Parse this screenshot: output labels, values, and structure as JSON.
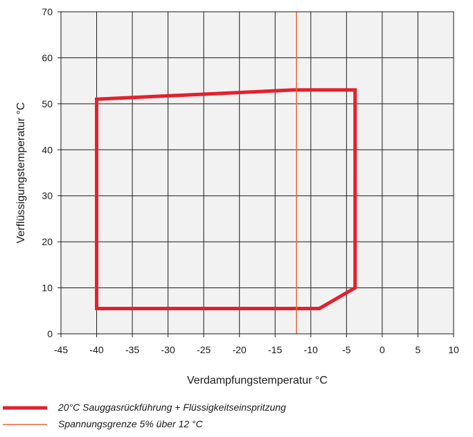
{
  "chart_data": {
    "type": "area",
    "xlabel": "Verdampfungstemperatur °C",
    "ylabel": "Verflüssigungstemperatur °C",
    "xlim": [
      -45,
      10
    ],
    "ylim": [
      0,
      70
    ],
    "x_ticks": [
      -45,
      -40,
      -35,
      -30,
      -25,
      -20,
      -15,
      -10,
      -5,
      0,
      5,
      10
    ],
    "y_ticks": [
      0,
      10,
      20,
      30,
      40,
      50,
      60,
      70
    ],
    "grid": true,
    "series": [
      {
        "name": "20°C Sauggasrückführung + Flüssigkeitseinspritzung",
        "color": "#e4202e",
        "kind": "envelope",
        "points": [
          {
            "x": -40,
            "y": 51
          },
          {
            "x": -12.5,
            "y": 53
          },
          {
            "x": -3.8,
            "y": 53
          },
          {
            "x": -3.8,
            "y": 10
          },
          {
            "x": -8.8,
            "y": 5.5
          },
          {
            "x": -40,
            "y": 5.5
          }
        ]
      },
      {
        "name": "Spannungsgrenze 5% über 12 °C",
        "color": "#e8643a",
        "kind": "vline",
        "x": -12
      }
    ]
  },
  "legend": {
    "items": [
      {
        "label": "20°C Sauggasrückführung + Flüssigkeitseinspritzung",
        "color": "#e4202e"
      },
      {
        "label": "Spannungsgrenze 5% über 12 °C",
        "color": "#e8643a"
      }
    ]
  }
}
